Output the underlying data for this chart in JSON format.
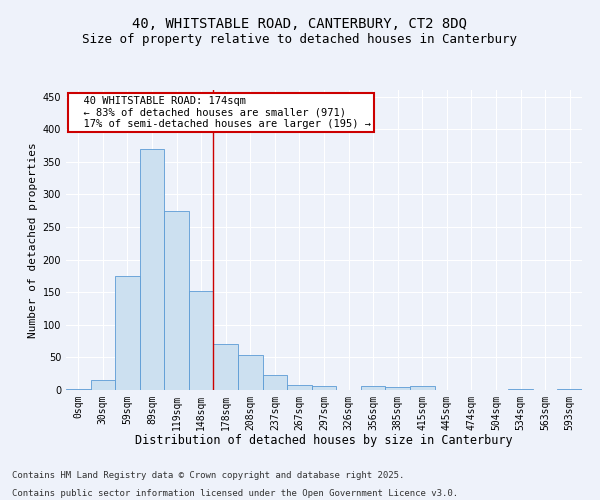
{
  "title": "40, WHITSTABLE ROAD, CANTERBURY, CT2 8DQ",
  "subtitle": "Size of property relative to detached houses in Canterbury",
  "xlabel": "Distribution of detached houses by size in Canterbury",
  "ylabel": "Number of detached properties",
  "bar_color": "#cce0f0",
  "bar_edge_color": "#5b9bd5",
  "background_color": "#eef2fa",
  "grid_color": "#ffffff",
  "categories": [
    "0sqm",
    "30sqm",
    "59sqm",
    "89sqm",
    "119sqm",
    "148sqm",
    "178sqm",
    "208sqm",
    "237sqm",
    "267sqm",
    "297sqm",
    "326sqm",
    "356sqm",
    "385sqm",
    "415sqm",
    "445sqm",
    "474sqm",
    "504sqm",
    "534sqm",
    "563sqm",
    "593sqm"
  ],
  "values": [
    2,
    15,
    175,
    370,
    275,
    152,
    70,
    54,
    23,
    8,
    6,
    0,
    6,
    4,
    6,
    0,
    0,
    0,
    1,
    0,
    2
  ],
  "ylim": [
    0,
    460
  ],
  "yticks": [
    0,
    50,
    100,
    150,
    200,
    250,
    300,
    350,
    400,
    450
  ],
  "red_line_x": 5.5,
  "annotation_text": "  40 WHITSTABLE ROAD: 174sqm\n  ← 83% of detached houses are smaller (971)\n  17% of semi-detached houses are larger (195) →",
  "annotation_box_color": "#ffffff",
  "annotation_box_edge_color": "#cc0000",
  "footer_line1": "Contains HM Land Registry data © Crown copyright and database right 2025.",
  "footer_line2": "Contains public sector information licensed under the Open Government Licence v3.0.",
  "title_fontsize": 10,
  "subtitle_fontsize": 9,
  "xlabel_fontsize": 8.5,
  "ylabel_fontsize": 8,
  "tick_fontsize": 7,
  "annotation_fontsize": 7.5,
  "footer_fontsize": 6.5
}
